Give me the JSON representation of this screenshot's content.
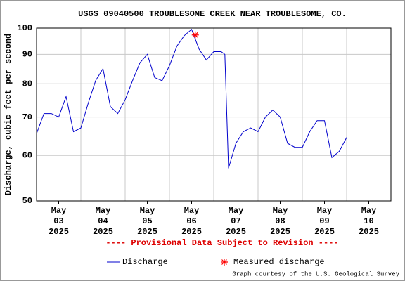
{
  "chart_data": {
    "type": "line",
    "title": "USGS 09040500 TROUBLESOME CREEK NEAR TROUBLESOME, CO.",
    "y_label": "Discharge, cubic feet per second",
    "note": "---- Provisional Data Subject to Revision ----",
    "credit": "Graph courtesy of the U.S. Geological Survey",
    "log_y": true,
    "grid": true,
    "ylim": [
      50,
      100
    ],
    "yticks": [
      50,
      60,
      70,
      80,
      90,
      100
    ],
    "xlim": [
      "2025-05-03 00:00",
      "2025-05-11 00:00"
    ],
    "xticks": [
      {
        "value": "2025-05-03 12:00",
        "label": [
          "May",
          "03",
          "2025"
        ]
      },
      {
        "value": "2025-05-04 12:00",
        "label": [
          "May",
          "04",
          "2025"
        ]
      },
      {
        "value": "2025-05-05 12:00",
        "label": [
          "May",
          "05",
          "2025"
        ]
      },
      {
        "value": "2025-05-06 12:00",
        "label": [
          "May",
          "06",
          "2025"
        ]
      },
      {
        "value": "2025-05-07 12:00",
        "label": [
          "May",
          "07",
          "2025"
        ]
      },
      {
        "value": "2025-05-08 12:00",
        "label": [
          "May",
          "08",
          "2025"
        ]
      },
      {
        "value": "2025-05-09 12:00",
        "label": [
          "May",
          "09",
          "2025"
        ]
      },
      {
        "value": "2025-05-10 12:00",
        "label": [
          "May",
          "10",
          "2025"
        ]
      }
    ],
    "xgrid": [
      "2025-05-04 00:00",
      "2025-05-05 00:00",
      "2025-05-06 00:00",
      "2025-05-07 00:00",
      "2025-05-08 00:00",
      "2025-05-09 00:00",
      "2025-05-10 00:00"
    ],
    "series": [
      {
        "name": "Discharge",
        "color": "#0000cc",
        "x": [
          "2025-05-03 00:00",
          "2025-05-03 04:00",
          "2025-05-03 08:00",
          "2025-05-03 12:00",
          "2025-05-03 16:00",
          "2025-05-03 20:00",
          "2025-05-04 00:00",
          "2025-05-04 04:00",
          "2025-05-04 08:00",
          "2025-05-04 12:00",
          "2025-05-04 16:00",
          "2025-05-04 20:00",
          "2025-05-05 00:00",
          "2025-05-05 04:00",
          "2025-05-05 08:00",
          "2025-05-05 12:00",
          "2025-05-05 16:00",
          "2025-05-05 20:00",
          "2025-05-06 00:00",
          "2025-05-06 04:00",
          "2025-05-06 08:00",
          "2025-05-06 12:00",
          "2025-05-06 16:00",
          "2025-05-06 20:00",
          "2025-05-07 00:00",
          "2025-05-07 04:00",
          "2025-05-07 06:00",
          "2025-05-07 08:00",
          "2025-05-07 12:00",
          "2025-05-07 16:00",
          "2025-05-07 20:00",
          "2025-05-08 00:00",
          "2025-05-08 04:00",
          "2025-05-08 08:00",
          "2025-05-08 12:00",
          "2025-05-08 16:00",
          "2025-05-08 20:00",
          "2025-05-09 00:00",
          "2025-05-09 04:00",
          "2025-05-09 08:00",
          "2025-05-09 12:00",
          "2025-05-09 16:00",
          "2025-05-09 20:00",
          "2025-05-10 00:00"
        ],
        "values": [
          65.5,
          71,
          71,
          70,
          76,
          66,
          67,
          74,
          81,
          85,
          73,
          71,
          75,
          81,
          87,
          90,
          82,
          81,
          86,
          93,
          97,
          99.5,
          92,
          88,
          91,
          91,
          90,
          57,
          63,
          66,
          67,
          66,
          70,
          72,
          70,
          63,
          62,
          62,
          66,
          69,
          69,
          59.5,
          61,
          64.5
        ]
      },
      {
        "name": "Measured discharge",
        "color": "#ff0000",
        "marker": "star",
        "x": [
          "2025-05-06 14:00"
        ],
        "values": [
          97.3
        ]
      }
    ]
  }
}
